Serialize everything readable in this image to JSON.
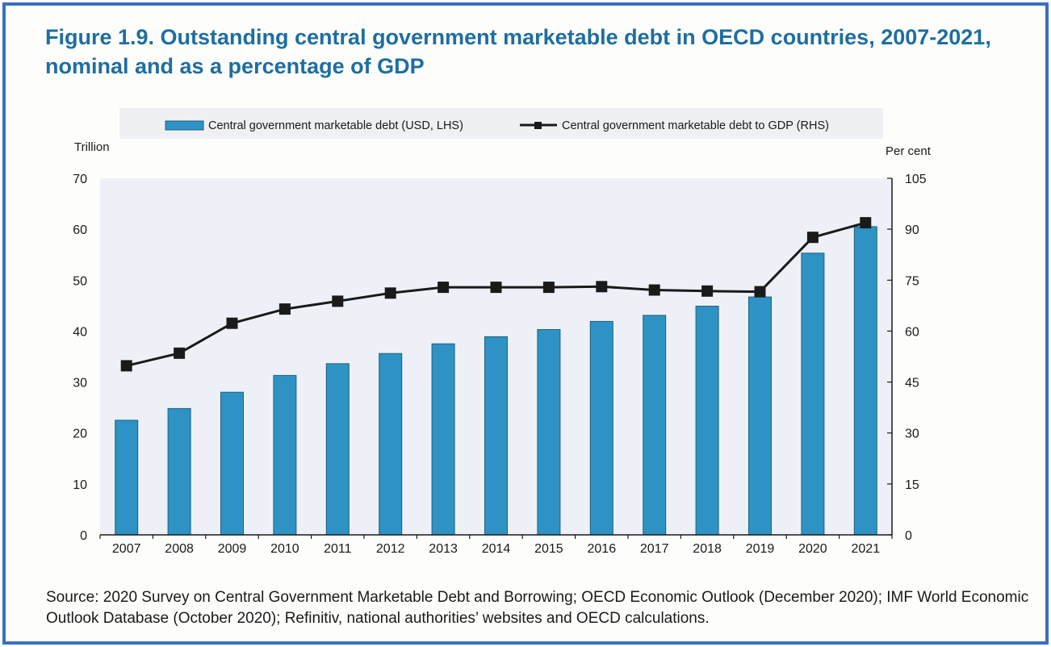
{
  "title": {
    "line1": "Figure 1.9. Outstanding central government marketable debt in OECD countries, 2007-2021,",
    "line2": "nominal and as a percentage of GDP"
  },
  "source": {
    "line1": "Source: 2020 Survey on Central Government Marketable Debt and Borrowing; OECD Economic Outlook (December 2020); IMF World Economic",
    "line2": "Outlook Database (October 2020); Refinitiv, national authorities’ websites and OECD calculations."
  },
  "chart_data": {
    "type": "bar",
    "categories": [
      "2007",
      "2008",
      "2009",
      "2010",
      "2011",
      "2012",
      "2013",
      "2014",
      "2015",
      "2016",
      "2017",
      "2018",
      "2019",
      "2020",
      "2021"
    ],
    "series": [
      {
        "name": "Central government marketable debt (USD, LHS)",
        "type": "bar",
        "axis": "left",
        "color": "#2e93c4",
        "values": [
          22.5,
          24.8,
          28.0,
          31.3,
          33.6,
          35.6,
          37.5,
          38.9,
          40.3,
          41.9,
          43.1,
          44.9,
          46.7,
          55.3,
          60.5
        ]
      },
      {
        "name": "Central government marketable debt to GDP (RHS)",
        "type": "line",
        "axis": "right",
        "color": "#1a1a1a",
        "values": [
          49.8,
          53.5,
          62.3,
          66.5,
          68.8,
          71.2,
          72.9,
          72.9,
          72.9,
          73.1,
          72.1,
          71.8,
          71.6,
          87.6,
          91.9
        ]
      }
    ],
    "left_axis": {
      "label": "Trillion",
      "range": [
        0,
        70
      ],
      "ticks": [
        "0",
        "10",
        "20",
        "30",
        "40",
        "50",
        "60",
        "70"
      ]
    },
    "right_axis": {
      "label": "Per cent",
      "range": [
        0,
        105
      ],
      "ticks": [
        "0",
        "15",
        "30",
        "45",
        "60",
        "75",
        "90",
        "105"
      ]
    },
    "legend": {
      "placement": "top",
      "items": [
        "Central government marketable debt (USD, LHS)",
        "Central government marketable debt to GDP (RHS)"
      ]
    },
    "grid": false,
    "plot_background": "#edf1f7"
  }
}
